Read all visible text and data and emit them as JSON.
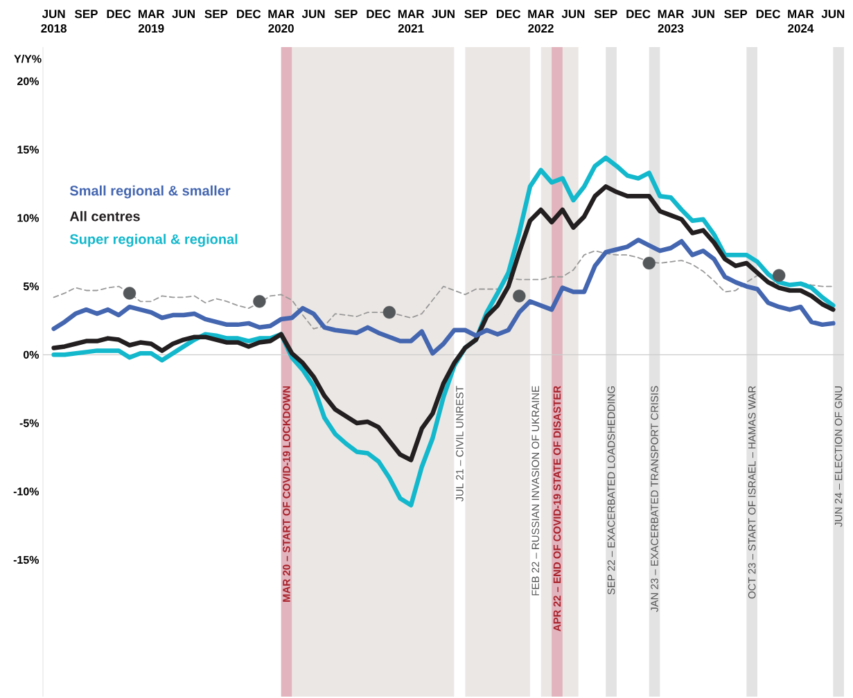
{
  "chart_data": {
    "type": "line",
    "ylabel": "Y/Y%",
    "legend": "left",
    "x": [
      "2018-06",
      "2018-07",
      "2018-08",
      "2018-09",
      "2018-10",
      "2018-11",
      "2018-12",
      "2019-01",
      "2019-02",
      "2019-03",
      "2019-04",
      "2019-05",
      "2019-06",
      "2019-07",
      "2019-08",
      "2019-09",
      "2019-10",
      "2019-11",
      "2019-12",
      "2020-01",
      "2020-02",
      "2020-03",
      "2020-04",
      "2020-05",
      "2020-06",
      "2020-07",
      "2020-08",
      "2020-09",
      "2020-10",
      "2020-11",
      "2020-12",
      "2021-01",
      "2021-02",
      "2021-03",
      "2021-04",
      "2021-05",
      "2021-06",
      "2021-07",
      "2021-08",
      "2021-09",
      "2021-10",
      "2021-11",
      "2021-12",
      "2022-01",
      "2022-02",
      "2022-03",
      "2022-04",
      "2022-05",
      "2022-06",
      "2022-07",
      "2022-08",
      "2022-09",
      "2022-10",
      "2022-11",
      "2022-12",
      "2023-01",
      "2023-02",
      "2023-03",
      "2023-04",
      "2023-05",
      "2023-06",
      "2023-07",
      "2023-08",
      "2023-09",
      "2023-10",
      "2023-11",
      "2023-12",
      "2024-01",
      "2024-02",
      "2024-03",
      "2024-04",
      "2024-05",
      "2024-06"
    ],
    "series": [
      {
        "type": "scatter",
        "marker": "circle",
        "color": "#55585b",
        "x": [
          "2019-01",
          "2020-01",
          "2021-01",
          "2022-01",
          "2023-01",
          "2024-01"
        ],
        "values": [
          4.5,
          3.9,
          3.1,
          4.3,
          6.7,
          5.8
        ]
      },
      {
        "name": "Small regional & smaller",
        "color": "#4466b0",
        "values": [
          1.9,
          2.4,
          3.0,
          3.3,
          3.0,
          3.3,
          2.9,
          3.5,
          3.3,
          3.1,
          2.7,
          2.9,
          2.9,
          3.0,
          2.6,
          2.4,
          2.2,
          2.2,
          2.3,
          2.0,
          2.1,
          2.6,
          2.7,
          3.4,
          3.0,
          2.0,
          1.8,
          1.7,
          1.6,
          2.0,
          1.6,
          1.3,
          1.0,
          1.0,
          1.7,
          0.1,
          0.8,
          1.8,
          1.8,
          1.4,
          1.8,
          1.5,
          1.8,
          3.1,
          3.9,
          3.6,
          3.3,
          4.9,
          4.6,
          4.6,
          6.5,
          7.5,
          7.7,
          7.9,
          8.4,
          8.0,
          7.6,
          7.8,
          8.3,
          7.3,
          7.6,
          7.0,
          5.7,
          5.3,
          5.0,
          4.8,
          3.8,
          3.5,
          3.3,
          3.5,
          2.4,
          2.2,
          2.3
        ]
      },
      {
        "name": "All centres",
        "color": "#231f20",
        "values": [
          0.5,
          0.6,
          0.8,
          1.0,
          1.0,
          1.2,
          1.1,
          0.7,
          0.9,
          0.8,
          0.3,
          0.8,
          1.1,
          1.3,
          1.3,
          1.1,
          0.9,
          0.9,
          0.6,
          0.9,
          1.0,
          1.5,
          0.1,
          -0.6,
          -1.6,
          -3.0,
          -4.0,
          -4.5,
          -5.0,
          -4.9,
          -5.3,
          -6.3,
          -7.3,
          -7.7,
          -5.4,
          -4.3,
          -2.1,
          -0.6,
          0.5,
          1.1,
          2.8,
          3.6,
          5.0,
          7.5,
          9.8,
          10.6,
          9.7,
          10.6,
          9.3,
          10.1,
          11.6,
          12.3,
          11.9,
          11.6,
          11.6,
          11.6,
          10.5,
          10.2,
          9.9,
          8.9,
          9.1,
          8.2,
          7.0,
          6.5,
          6.7,
          6.0,
          5.3,
          4.9,
          4.7,
          4.7,
          4.3,
          3.7,
          3.3
        ]
      },
      {
        "name": "Super regional & regional",
        "color": "#13b8cc",
        "values": [
          0.0,
          0.0,
          0.1,
          0.2,
          0.3,
          0.3,
          0.3,
          -0.2,
          0.1,
          0.1,
          -0.4,
          0.1,
          0.6,
          1.1,
          1.5,
          1.4,
          1.2,
          1.2,
          1.0,
          1.2,
          1.2,
          1.5,
          -0.2,
          -1.1,
          -2.3,
          -4.6,
          -5.8,
          -6.5,
          -7.1,
          -7.2,
          -7.8,
          -9.0,
          -10.5,
          -11.0,
          -8.2,
          -6.1,
          -3.1,
          -0.8,
          0.5,
          1.1,
          3.1,
          4.5,
          6.0,
          8.9,
          12.3,
          13.5,
          12.6,
          12.9,
          11.3,
          12.3,
          13.8,
          14.4,
          13.8,
          13.1,
          12.9,
          13.3,
          11.6,
          11.5,
          10.6,
          9.8,
          9.9,
          8.8,
          7.3,
          7.3,
          7.3,
          6.8,
          5.9,
          5.3,
          5.1,
          5.2,
          4.9,
          4.2,
          3.6
        ]
      },
      {
        "line_style": "dashed",
        "color": "#999999",
        "values": [
          4.2,
          4.5,
          4.9,
          4.7,
          4.7,
          4.9,
          5.0,
          4.5,
          3.9,
          3.9,
          4.3,
          4.2,
          4.2,
          4.3,
          3.8,
          4.1,
          3.9,
          3.6,
          3.4,
          3.8,
          4.3,
          4.4,
          4.0,
          2.9,
          1.9,
          2.1,
          3.0,
          2.9,
          2.8,
          3.1,
          3.1,
          3.1,
          2.9,
          2.7,
          3.0,
          4.0,
          5.0,
          4.7,
          4.4,
          4.8,
          4.8,
          4.8,
          5.6,
          5.5,
          5.5,
          5.5,
          5.7,
          5.7,
          6.2,
          7.3,
          7.6,
          7.4,
          7.3,
          7.3,
          7.1,
          6.8,
          6.7,
          6.8,
          6.9,
          6.6,
          6.1,
          5.4,
          4.6,
          4.7,
          5.3,
          5.8,
          5.4,
          5.2,
          5.1,
          5.3,
          5.1,
          5.0,
          5.0
        ]
      }
    ],
    "xlim": [
      "2018-05",
      "2024-07"
    ],
    "ylim": [
      -25,
      22.5
    ],
    "xticks": [
      {
        "value": "2018-06",
        "label": "JUN 2018"
      },
      {
        "value": "2018-09",
        "label": "SEP"
      },
      {
        "value": "2018-12",
        "label": "DEC"
      },
      {
        "value": "2019-03",
        "label": "MAR 2019"
      },
      {
        "value": "2019-06",
        "label": "JUN"
      },
      {
        "value": "2019-09",
        "label": "SEP"
      },
      {
        "value": "2019-12",
        "label": "DEC"
      },
      {
        "value": "2020-03",
        "label": "MAR 2020"
      },
      {
        "value": "2020-06",
        "label": "JUN"
      },
      {
        "value": "2020-09",
        "label": "SEP"
      },
      {
        "value": "2020-12",
        "label": "DEC"
      },
      {
        "value": "2021-03",
        "label": "MAR 2021"
      },
      {
        "value": "2021-06",
        "label": "JUN"
      },
      {
        "value": "2021-09",
        "label": "SEP"
      },
      {
        "value": "2021-12",
        "label": "DEC"
      },
      {
        "value": "2022-03",
        "label": "MAR 2022"
      },
      {
        "value": "2022-06",
        "label": "JUN"
      },
      {
        "value": "2022-09",
        "label": "SEP"
      },
      {
        "value": "2022-12",
        "label": "DEC"
      },
      {
        "value": "2023-03",
        "label": "MAR 2023"
      },
      {
        "value": "2023-06",
        "label": "JUN"
      },
      {
        "value": "2023-09",
        "label": "SEP"
      },
      {
        "value": "2023-12",
        "label": "DEC"
      },
      {
        "value": "2024-03",
        "label": "MAR 2024"
      },
      {
        "value": "2024-06",
        "label": "JUN"
      }
    ],
    "yticks": [
      {
        "value": -15,
        "label": "-15%"
      },
      {
        "value": -10,
        "label": "-10%"
      },
      {
        "value": -5,
        "label": "-5%"
      },
      {
        "value": 0,
        "label": "0%"
      },
      {
        "value": 5,
        "label": "5%"
      },
      {
        "value": 10,
        "label": "10%"
      },
      {
        "value": 15,
        "label": "15%"
      },
      {
        "value": 20,
        "label": "20%"
      }
    ],
    "ref_lines": [
      {
        "axis": "y",
        "value": 0,
        "color": "#cccccc"
      }
    ],
    "bands": [
      {
        "axis": "x",
        "from": "2020-04",
        "to": "2021-07",
        "color": "#ebe7e4"
      },
      {
        "axis": "x",
        "from": "2021-08",
        "to": "2022-02",
        "color": "#ebe7e4"
      },
      {
        "axis": "x",
        "from": "2022-03",
        "to": "2022-06-15",
        "color": "#ebe7e4"
      },
      {
        "axis": "x",
        "from": "2020-03",
        "to": "2020-04",
        "color": "#e2b4bd",
        "label": "MAR 20 – START OF COVID-19 LOCKDOWN"
      },
      {
        "axis": "x",
        "from": "2021-07",
        "to": "2021-08",
        "color": "#ffffff",
        "label": "JUL 21 – CIVIL UNREST"
      },
      {
        "axis": "x",
        "from": "2022-02",
        "to": "2022-03",
        "color": "#ffffff",
        "label": "FEB 22 – RUSSIAN INVASION OF UKRAINE"
      },
      {
        "axis": "x",
        "from": "2022-04",
        "to": "2022-05",
        "color": "#e2b4bd",
        "label": "APR 22 – END OF COVID-19 STATE OF DISASTER"
      },
      {
        "axis": "x",
        "from": "2022-09",
        "to": "2022-10",
        "color": "#e3e3e3",
        "label": "SEP 22 – EXACERBATED LOADSHEDDING"
      },
      {
        "axis": "x",
        "from": "2023-01",
        "to": "2023-02",
        "color": "#e3e3e3",
        "label": "JAN 23 – EXACERBATED TRANSPORT CRISIS"
      },
      {
        "axis": "x",
        "from": "2023-10",
        "to": "2023-11",
        "color": "#e3e3e3",
        "label": "OCT 23 – START OF ISRAEL – HAMAS WAR"
      },
      {
        "axis": "x",
        "from": "2024-06",
        "to": "2024-07",
        "color": "#e3e3e3",
        "label": "JUN 24 – ELECTION OF GNU"
      }
    ]
  }
}
